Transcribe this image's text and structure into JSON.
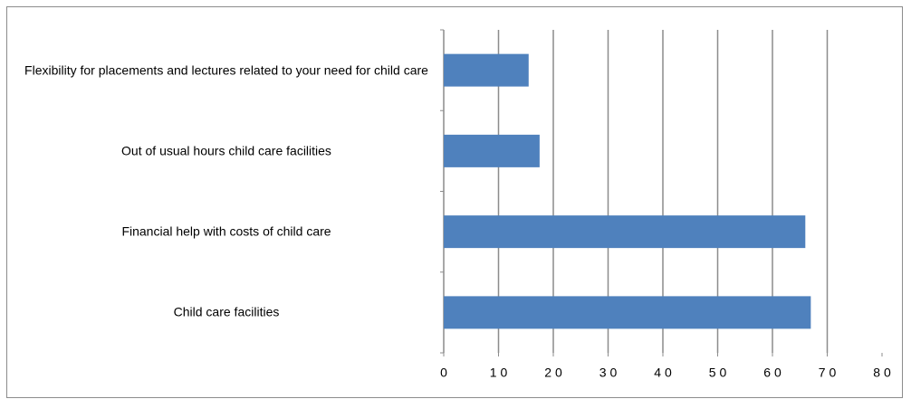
{
  "chart_data": {
    "type": "bar",
    "orientation": "horizontal",
    "categories": [
      "Flexibility for placements and lectures related to your need for child care",
      "Out of usual hours child care facilities",
      "Financial help with costs of child care",
      "Child care facilities"
    ],
    "values": [
      15.5,
      17.5,
      66,
      67
    ],
    "color": "#4f81bd",
    "xlim": [
      0,
      80
    ],
    "xticks": [
      0,
      10,
      20,
      30,
      40,
      50,
      60,
      70,
      80
    ],
    "grid": true
  }
}
